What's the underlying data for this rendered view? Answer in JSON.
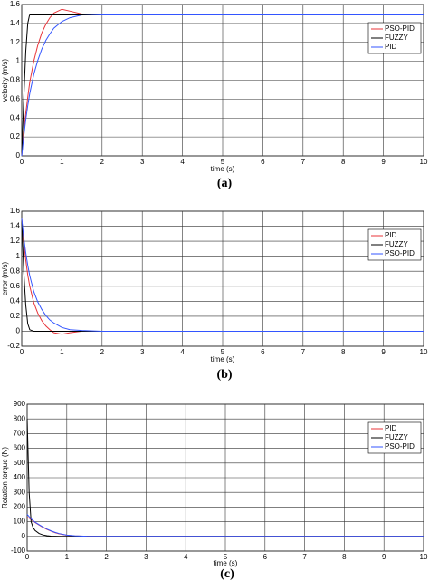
{
  "chart_data": [
    {
      "type": "line",
      "caption": "(a)",
      "xlabel": "time (s)",
      "ylabel": "velocity (m/s)",
      "x": [
        0,
        0.05,
        0.1,
        0.15,
        0.2,
        0.3,
        0.4,
        0.5,
        0.6,
        0.7,
        0.8,
        1,
        1.2,
        1.5,
        2,
        3,
        5,
        10
      ],
      "xlim": [
        0,
        10
      ],
      "xticks": [
        0,
        1,
        2,
        3,
        4,
        5,
        6,
        7,
        8,
        9,
        10
      ],
      "ylim": [
        0,
        1.6
      ],
      "yticks": [
        0,
        0.2,
        0.4,
        0.6,
        0.8,
        1,
        1.2,
        1.4,
        1.6
      ],
      "grid": true,
      "legend": "upper right",
      "series": [
        {
          "name": "PSO-PID",
          "color": "#e8343a",
          "values": [
            0,
            0.25,
            0.45,
            0.62,
            0.78,
            1.0,
            1.17,
            1.3,
            1.39,
            1.46,
            1.51,
            1.55,
            1.53,
            1.5,
            1.5,
            1.5,
            1.5,
            1.5
          ]
        },
        {
          "name": "FUZZY",
          "color": "#000000",
          "values": [
            0,
            0.6,
            1.1,
            1.4,
            1.5,
            1.5,
            1.5,
            1.5,
            1.5,
            1.5,
            1.5,
            1.5,
            1.5,
            1.5,
            1.5,
            1.5,
            1.5,
            1.5
          ]
        },
        {
          "name": "PID",
          "color": "#3355ff",
          "values": [
            0,
            0.2,
            0.38,
            0.53,
            0.66,
            0.86,
            1.01,
            1.13,
            1.22,
            1.29,
            1.35,
            1.42,
            1.46,
            1.49,
            1.5,
            1.5,
            1.5,
            1.5
          ]
        }
      ]
    },
    {
      "type": "line",
      "caption": "(b)",
      "xlabel": "time (s)",
      "ylabel": "error (m/s)",
      "x": [
        0,
        0.05,
        0.1,
        0.15,
        0.2,
        0.3,
        0.4,
        0.5,
        0.6,
        0.7,
        0.8,
        1,
        1.2,
        1.5,
        2,
        3,
        5,
        10
      ],
      "xlim": [
        0,
        10
      ],
      "xticks": [
        0,
        1,
        2,
        3,
        4,
        5,
        6,
        7,
        8,
        9,
        10
      ],
      "ylim": [
        -0.2,
        1.6
      ],
      "yticks": [
        -0.2,
        0,
        0.2,
        0.4,
        0.6,
        0.8,
        1,
        1.2,
        1.4,
        1.6
      ],
      "grid": true,
      "legend": "upper right",
      "series": [
        {
          "name": "PID",
          "color": "#e8343a",
          "values": [
            1.5,
            1.2,
            0.95,
            0.75,
            0.6,
            0.38,
            0.24,
            0.14,
            0.07,
            0.02,
            -0.02,
            -0.04,
            -0.02,
            0,
            0,
            0,
            0,
            0
          ]
        },
        {
          "name": "FUZZY",
          "color": "#000000",
          "values": [
            1.5,
            0.8,
            0.35,
            0.1,
            0.02,
            0,
            0,
            0,
            0,
            0,
            0,
            0,
            0,
            0,
            0,
            0,
            0,
            0
          ]
        },
        {
          "name": "PSO-PID",
          "color": "#3355ff",
          "values": [
            1.5,
            1.25,
            1.05,
            0.88,
            0.74,
            0.53,
            0.39,
            0.29,
            0.21,
            0.15,
            0.11,
            0.05,
            0.02,
            0.01,
            0,
            0,
            0,
            0
          ]
        }
      ]
    },
    {
      "type": "line",
      "caption": "(c)",
      "xlabel": "time (s)",
      "ylabel": "Rotation torque (N)",
      "x": [
        0,
        0.05,
        0.1,
        0.15,
        0.2,
        0.3,
        0.4,
        0.5,
        0.6,
        0.7,
        0.8,
        1,
        1.2,
        1.5,
        2,
        3,
        5,
        10
      ],
      "xlim": [
        0,
        10
      ],
      "xticks": [
        0,
        1,
        2,
        3,
        4,
        5,
        6,
        7,
        8,
        9,
        10
      ],
      "ylim": [
        -100,
        900
      ],
      "yticks": [
        -100,
        0,
        100,
        200,
        300,
        400,
        500,
        600,
        700,
        800,
        900
      ],
      "grid": true,
      "legend": "upper right",
      "series": [
        {
          "name": "PID",
          "color": "#e8343a",
          "values": [
            130,
            125,
            115,
            105,
            95,
            78,
            62,
            48,
            36,
            26,
            18,
            8,
            3,
            1,
            0,
            0,
            0,
            0
          ]
        },
        {
          "name": "FUZZY",
          "color": "#000000",
          "values": [
            800,
            300,
            100,
            60,
            40,
            20,
            10,
            5,
            2,
            1,
            0,
            0,
            0,
            0,
            0,
            0,
            0,
            0
          ]
        },
        {
          "name": "PSO-PID",
          "color": "#3355ff",
          "values": [
            150,
            135,
            120,
            108,
            97,
            80,
            64,
            50,
            38,
            28,
            20,
            9,
            4,
            1,
            0,
            0,
            0,
            0
          ]
        }
      ]
    }
  ]
}
